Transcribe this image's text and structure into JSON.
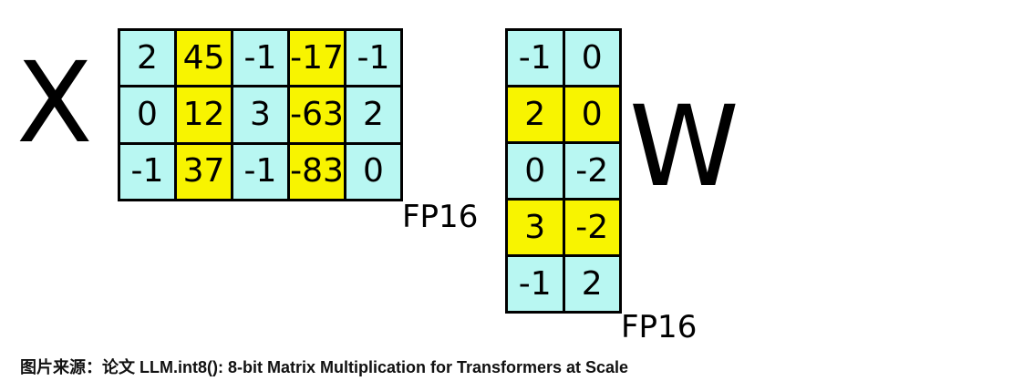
{
  "colors": {
    "normal": "#b8f7f2",
    "outlier": "#f8f400",
    "border": "#000000"
  },
  "x_matrix": {
    "label": "X",
    "precision": "FP16",
    "outlier_columns": [
      1,
      3
    ],
    "rows": [
      [
        "2",
        "45",
        "-1",
        "-17",
        "-1"
      ],
      [
        "0",
        "12",
        "3",
        "-63",
        "2"
      ],
      [
        "-1",
        "37",
        "-1",
        "-83",
        "0"
      ]
    ]
  },
  "w_matrix": {
    "label": "W",
    "precision": "FP16",
    "outlier_rows": [
      1,
      3
    ],
    "rows": [
      [
        "-1",
        "0"
      ],
      [
        "2",
        "0"
      ],
      [
        "0",
        "-2"
      ],
      [
        "3",
        "-2"
      ],
      [
        "-1",
        "2"
      ]
    ]
  },
  "caption": "图片来源：论文 LLM.int8(): 8-bit Matrix Multiplication for Transformers at Scale"
}
